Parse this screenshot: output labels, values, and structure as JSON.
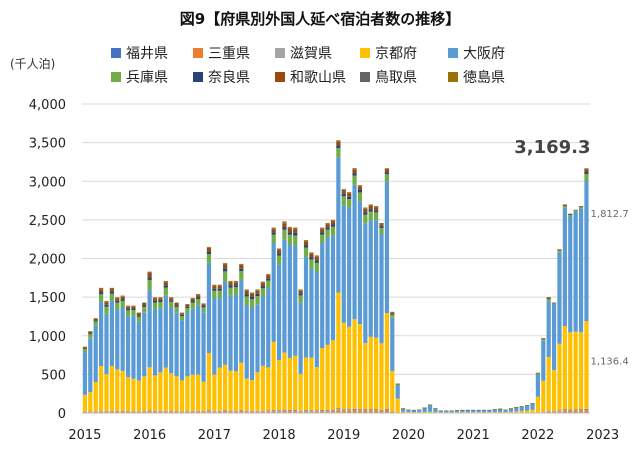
{
  "chart_data": {
    "type": "bar",
    "stacked": true,
    "title": "図9【府県別外国人延べ宿泊者数の推移】",
    "ylabel": "(千人泊)",
    "ylim": [
      0,
      4000
    ],
    "yticks": [
      0,
      500,
      1000,
      1500,
      2000,
      2500,
      3000,
      3500,
      4000
    ],
    "ytick_labels": [
      "0",
      "500",
      "1,000",
      "1,500",
      "2,000",
      "2,500",
      "3,000",
      "3,500",
      "4,000"
    ],
    "year_labels": [
      "2015",
      "2016",
      "2017",
      "2018",
      "2019",
      "2020",
      "2021",
      "2022",
      "2023"
    ],
    "months_per_year": 12,
    "grid": true,
    "legend_position": "top",
    "series": [
      {
        "name": "福井県",
        "color": "#4472C4"
      },
      {
        "name": "三重県",
        "color": "#ED7D31"
      },
      {
        "name": "滋賀県",
        "color": "#A5A5A5"
      },
      {
        "name": "京都府",
        "color": "#FFC000"
      },
      {
        "name": "大阪府",
        "color": "#5B9BD5"
      },
      {
        "name": "兵庫県",
        "color": "#70AD47"
      },
      {
        "name": "奈良県",
        "color": "#264478"
      },
      {
        "name": "和歌山県",
        "color": "#9E480E"
      },
      {
        "name": "鳥取県",
        "color": "#636363"
      },
      {
        "name": "徳島県",
        "color": "#997300"
      }
    ],
    "totals": [
      860,
      1060,
      1230,
      1620,
      1450,
      1620,
      1500,
      1520,
      1390,
      1390,
      1300,
      1430,
      1830,
      1500,
      1500,
      1710,
      1500,
      1430,
      1300,
      1410,
      1490,
      1540,
      1420,
      2150,
      1660,
      1660,
      1940,
      1710,
      1710,
      1930,
      1600,
      1560,
      1600,
      1700,
      1800,
      2400,
      2130,
      2480,
      2410,
      2400,
      1600,
      2240,
      2080,
      2040,
      2400,
      2460,
      2500,
      3530,
      2900,
      2860,
      3170,
      2950,
      2660,
      2700,
      2680,
      2460,
      3170,
      1310,
      380,
      60,
      45,
      40,
      45,
      70,
      110,
      60,
      30,
      30,
      30,
      35,
      40,
      40,
      40,
      40,
      40,
      40,
      50,
      55,
      45,
      60,
      75,
      90,
      100,
      130,
      520,
      970,
      1500,
      1430,
      2120,
      2700,
      2580,
      2630,
      2680,
      3169.3
    ],
    "kyoto": [
      220,
      250,
      380,
      580,
      480,
      580,
      540,
      520,
      440,
      420,
      400,
      450,
      560,
      460,
      500,
      560,
      490,
      450,
      400,
      450,
      470,
      470,
      380,
      740,
      470,
      560,
      590,
      520,
      510,
      620,
      420,
      400,
      500,
      580,
      560,
      880,
      650,
      740,
      670,
      700,
      480,
      680,
      680,
      560,
      800,
      840,
      900,
      1500,
      1120,
      1070,
      1160,
      1100,
      860,
      940,
      930,
      860,
      1240,
      520,
      180,
      15,
      12,
      10,
      10,
      12,
      15,
      12,
      8,
      8,
      8,
      9,
      10,
      10,
      10,
      10,
      10,
      10,
      12,
      13,
      12,
      15,
      20,
      25,
      30,
      40,
      200,
      400,
      700,
      530,
      860,
      1080,
      1000,
      1010,
      1000,
      1136.4
    ],
    "osaka": [
      550,
      700,
      730,
      830,
      780,
      850,
      780,
      820,
      790,
      820,
      760,
      830,
      1000,
      860,
      830,
      930,
      850,
      830,
      780,
      820,
      860,
      900,
      900,
      1170,
      990,
      900,
      1080,
      970,
      990,
      1070,
      950,
      940,
      880,
      900,
      1020,
      1280,
      1240,
      1460,
      1470,
      1430,
      920,
      1300,
      1160,
      1230,
      1360,
      1390,
      1360,
      1750,
      1520,
      1540,
      1740,
      1590,
      1550,
      1510,
      1520,
      1410,
      1700,
      690,
      170,
      35,
      25,
      22,
      27,
      45,
      80,
      40,
      15,
      15,
      15,
      18,
      22,
      22,
      22,
      22,
      22,
      22,
      30,
      33,
      25,
      36,
      45,
      55,
      60,
      80,
      290,
      520,
      720,
      850,
      1180,
      1530,
      1500,
      1550,
      1600,
      1812.7
    ],
    "annotations": [
      {
        "text": "3,169.3",
        "style": "big"
      },
      {
        "text": "1,812.7",
        "style": "small"
      },
      {
        "text": "1,136.4",
        "style": "small"
      }
    ]
  }
}
